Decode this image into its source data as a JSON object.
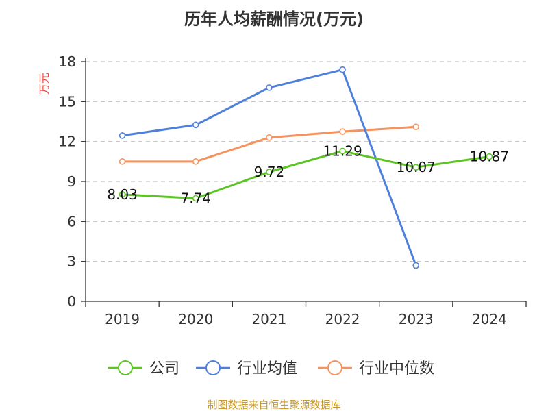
{
  "chart_data": {
    "type": "line",
    "title": "历年人均薪酬情况(万元)",
    "ylabel": "万元",
    "xlabel": "",
    "categories": [
      "2019",
      "2020",
      "2021",
      "2022",
      "2023",
      "2024"
    ],
    "ylim": [
      0,
      18
    ],
    "yticks": [
      0,
      3,
      6,
      9,
      12,
      15,
      18
    ],
    "grid": true,
    "legend_position": "bottom",
    "series": [
      {
        "name": "公司",
        "color": "#5cc524",
        "values": [
          8.03,
          7.74,
          9.72,
          11.29,
          10.07,
          10.87
        ],
        "labels": [
          "8.03",
          "7.74",
          "9.72",
          "11.29",
          "10.07",
          "10.87"
        ]
      },
      {
        "name": "行业均值",
        "color": "#4e7fdb",
        "values": [
          12.45,
          13.25,
          16.05,
          17.4,
          2.7,
          null
        ]
      },
      {
        "name": "行业中位数",
        "color": "#f5925d",
        "values": [
          10.5,
          10.5,
          12.3,
          12.75,
          13.1,
          null
        ]
      }
    ]
  },
  "source": "制图数据来自恒生聚源数据库",
  "colors": {
    "ylabel": "#e8453c",
    "source": "#c99a2e",
    "grid": "#c8c8c8",
    "axis": "#333333"
  }
}
